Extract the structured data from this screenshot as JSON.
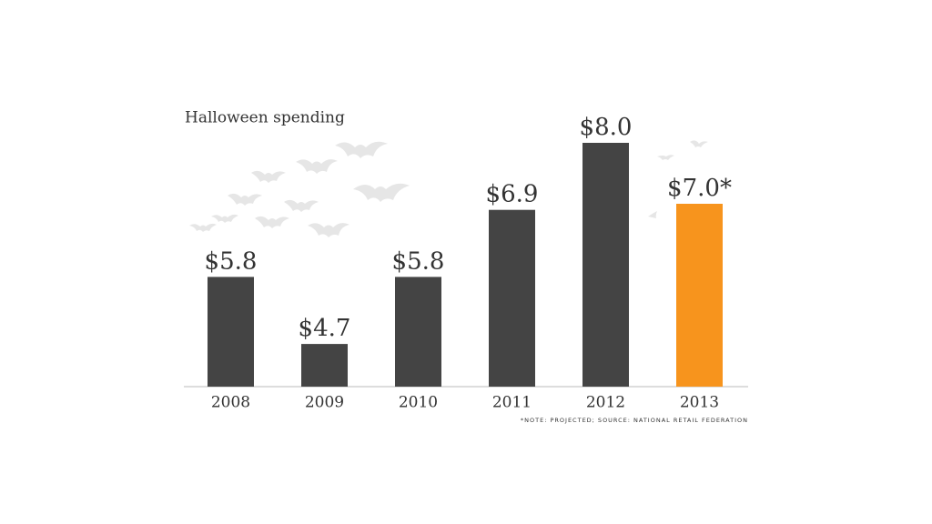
{
  "chart_data": {
    "type": "bar",
    "title": "Halloween spending",
    "categories": [
      "2008",
      "2009",
      "2010",
      "2011",
      "2012",
      "2013"
    ],
    "values": [
      5.8,
      4.7,
      5.8,
      6.9,
      8.0,
      7.0
    ],
    "value_labels": [
      "$5.8",
      "$4.7",
      "$5.8",
      "$6.9",
      "$8.0",
      "$7.0*"
    ],
    "colors": [
      "#444444",
      "#444444",
      "#444444",
      "#444444",
      "#444444",
      "#f7941d"
    ],
    "ylim": [
      4,
      8
    ],
    "note": "*NOTE: PROJECTED; SOURCE: NATIONAL RETAIL FEDERATION"
  }
}
